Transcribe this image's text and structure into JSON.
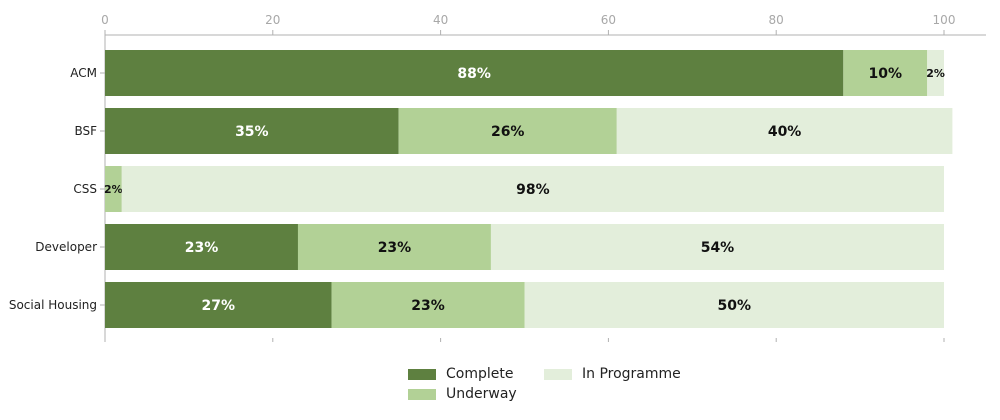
{
  "chart_data": {
    "type": "bar",
    "orientation": "horizontal",
    "stacked": true,
    "categories": [
      "ACM",
      "BSF",
      "CSS",
      "Developer",
      "Social Housing"
    ],
    "series": [
      {
        "name": "Complete",
        "color": "#5e8040",
        "label_color": "#ffffff",
        "values": [
          88,
          35,
          0,
          23,
          27
        ],
        "labels": [
          "88%",
          "35%",
          "",
          "23%",
          "27%"
        ]
      },
      {
        "name": "Underway",
        "color": "#b2d196",
        "label_color": "#111111",
        "values": [
          10,
          26,
          2,
          23,
          23
        ],
        "labels": [
          "10%",
          "26%",
          "2%",
          "23%",
          "23%"
        ]
      },
      {
        "name": "In Programme",
        "color": "#e3eedb",
        "label_color": "#111111",
        "values": [
          2,
          40,
          98,
          54,
          50
        ],
        "labels": [
          "2%",
          "40%",
          "98%",
          "54%",
          "50%"
        ]
      }
    ],
    "xlim": [
      0,
      100
    ],
    "xticks": [
      "0",
      "20",
      "40",
      "60",
      "80",
      "100"
    ],
    "axis_position": "top",
    "grid": false,
    "legend_position": "bottom"
  },
  "legend": {
    "complete": "Complete",
    "underway": "Underway",
    "in_programme": "In Programme"
  },
  "colors": {
    "complete": "#5e8040",
    "underway": "#b2d196",
    "in_programme": "#e3eedb",
    "axis": "#b0b0b0"
  }
}
